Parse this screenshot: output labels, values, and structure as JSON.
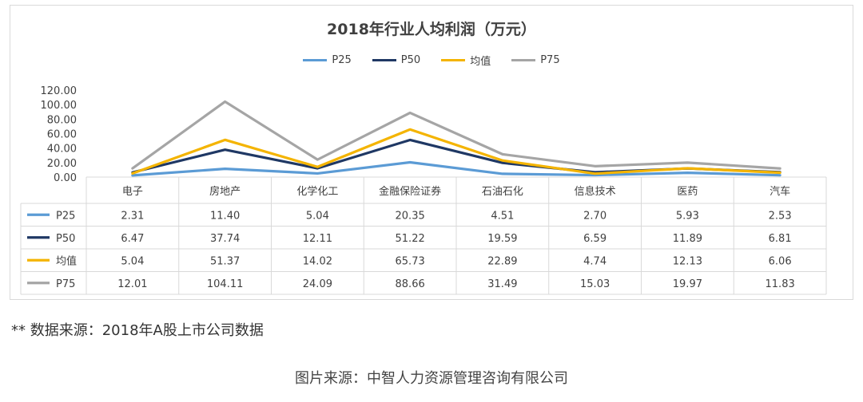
{
  "chart_data": {
    "type": "line",
    "title": "2018年行业人均利润（万元）",
    "categories": [
      "电子",
      "房地产",
      "化学化工",
      "金融保险证券",
      "石油石化",
      "信息技术",
      "医药",
      "汽车"
    ],
    "ylim": [
      0,
      120
    ],
    "yticks": [
      "0.00",
      "20.00",
      "40.00",
      "60.00",
      "80.00",
      "100.00",
      "120.00"
    ],
    "legend_position": "top-center",
    "series": [
      {
        "name": "P25",
        "color": "#5b9bd5",
        "values": [
          2.31,
          11.4,
          5.04,
          20.35,
          4.51,
          2.7,
          5.93,
          2.53
        ],
        "labels": [
          "2.31",
          "11.40",
          "5.04",
          "20.35",
          "4.51",
          "2.70",
          "5.93",
          "2.53"
        ]
      },
      {
        "name": "P50",
        "color": "#1f3864",
        "values": [
          6.47,
          37.74,
          12.11,
          51.22,
          19.59,
          6.59,
          11.89,
          6.81
        ],
        "labels": [
          "6.47",
          "37.74",
          "12.11",
          "51.22",
          "19.59",
          "6.59",
          "11.89",
          "6.81"
        ]
      },
      {
        "name": "均值",
        "color": "#f4b400",
        "values": [
          5.04,
          51.37,
          14.02,
          65.73,
          22.89,
          4.74,
          12.13,
          6.06
        ],
        "labels": [
          "5.04",
          "51.37",
          "14.02",
          "65.73",
          "22.89",
          "4.74",
          "12.13",
          "6.06"
        ]
      },
      {
        "name": "P75",
        "color": "#a5a5a5",
        "values": [
          12.01,
          104.11,
          24.09,
          88.66,
          31.49,
          15.03,
          19.97,
          11.83
        ],
        "labels": [
          "12.01",
          "104.11",
          "24.09",
          "88.66",
          "31.49",
          "15.03",
          "19.97",
          "11.83"
        ]
      }
    ]
  },
  "footnote": "** 数据来源：2018年A股上市公司数据",
  "source": "图片来源：中智人力资源管理咨询有限公司"
}
